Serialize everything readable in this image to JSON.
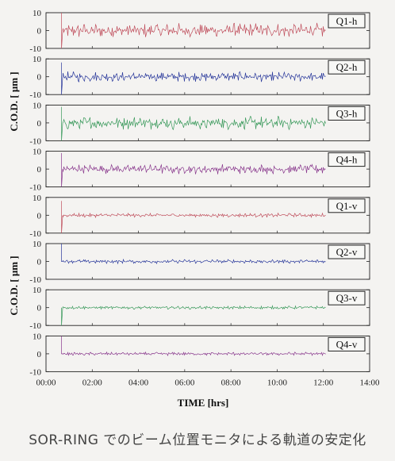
{
  "chart_data": {
    "type": "line",
    "x_label": "TIME [hrs]",
    "x_ticks": [
      "00:00",
      "02:00",
      "04:00",
      "06:00",
      "08:00",
      "10:00",
      "12:00",
      "14:00"
    ],
    "x_range_hours": [
      0,
      14
    ],
    "y_label_groups": [
      "C.O.D. [ μm ]",
      "C.O.D. [ μm ]"
    ],
    "y_ticks": [
      "10",
      "0",
      "-10"
    ],
    "y_range": [
      -10,
      10
    ],
    "data_start_hours": 0.67,
    "data_end_hours": 12.1,
    "grid": false,
    "panels": [
      {
        "name": "Q1-h",
        "color": "#c0505e",
        "oscillation_amplitude": 4.5,
        "initial_spike": [
          10,
          -10
        ]
      },
      {
        "name": "Q2-h",
        "color": "#2b3a9c",
        "oscillation_amplitude": 3.0,
        "initial_spike": [
          8,
          -10
        ]
      },
      {
        "name": "Q3-h",
        "color": "#3b9a5c",
        "oscillation_amplitude": 4.0,
        "initial_spike": [
          9,
          -10
        ]
      },
      {
        "name": "Q4-h",
        "color": "#8a3a8e",
        "oscillation_amplitude": 3.0,
        "initial_spike": [
          9,
          -10
        ]
      },
      {
        "name": "Q1-v",
        "color": "#c0505e",
        "oscillation_amplitude": 1.2,
        "initial_spike": [
          8,
          -10
        ]
      },
      {
        "name": "Q2-v",
        "color": "#2b3a9c",
        "oscillation_amplitude": 1.2,
        "initial_spike": [
          10,
          0
        ]
      },
      {
        "name": "Q3-v",
        "color": "#3b9a5c",
        "oscillation_amplitude": 1.0,
        "initial_spike": [
          0,
          -10
        ]
      },
      {
        "name": "Q4-v",
        "color": "#8a3a8e",
        "oscillation_amplitude": 1.0,
        "initial_spike": [
          10,
          0
        ]
      }
    ]
  },
  "caption": "SOR-RING でのビーム位置モニタによる軌道の安定化"
}
